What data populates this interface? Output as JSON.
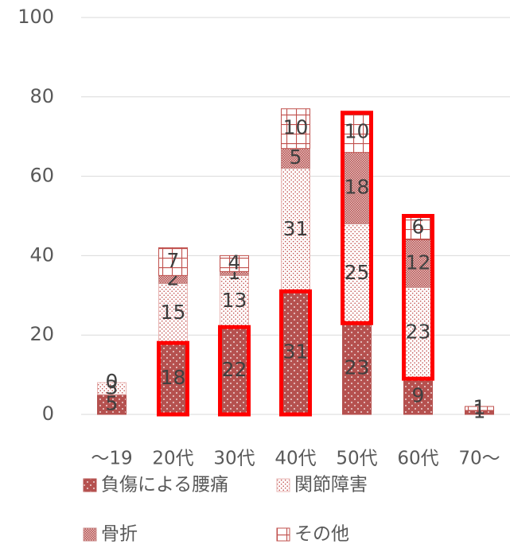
{
  "chart_data": {
    "type": "stacked_bar",
    "categories": [
      "～19",
      "20代",
      "30代",
      "40代",
      "50代",
      "60代",
      "70～"
    ],
    "series": [
      {
        "name": "負傷による腰痛",
        "color": "#b5514f",
        "values": [
          5,
          18,
          22,
          31,
          23,
          9,
          1
        ]
      },
      {
        "name": "関節障害",
        "color": "#e8b3b1",
        "values": [
          3,
          15,
          13,
          31,
          25,
          23,
          null
        ]
      },
      {
        "name": "骨折",
        "color": "#c98a88",
        "values": [
          null,
          2,
          1,
          5,
          18,
          12,
          null
        ]
      },
      {
        "name": "その他",
        "color": "#c0504d",
        "values": [
          0,
          7,
          4,
          10,
          10,
          6,
          1
        ]
      }
    ],
    "ylim": [
      0,
      100
    ],
    "yticks": [
      0,
      20,
      40,
      60,
      80,
      100
    ],
    "grid": true,
    "highlight_color": "#ff0000",
    "highlights": [
      [
        1,
        [
          0
        ]
      ],
      [
        2,
        [
          0
        ]
      ],
      [
        3,
        [
          0
        ]
      ],
      [
        4,
        [
          1,
          2,
          3
        ]
      ],
      [
        5,
        [
          1,
          2,
          3
        ]
      ]
    ]
  }
}
